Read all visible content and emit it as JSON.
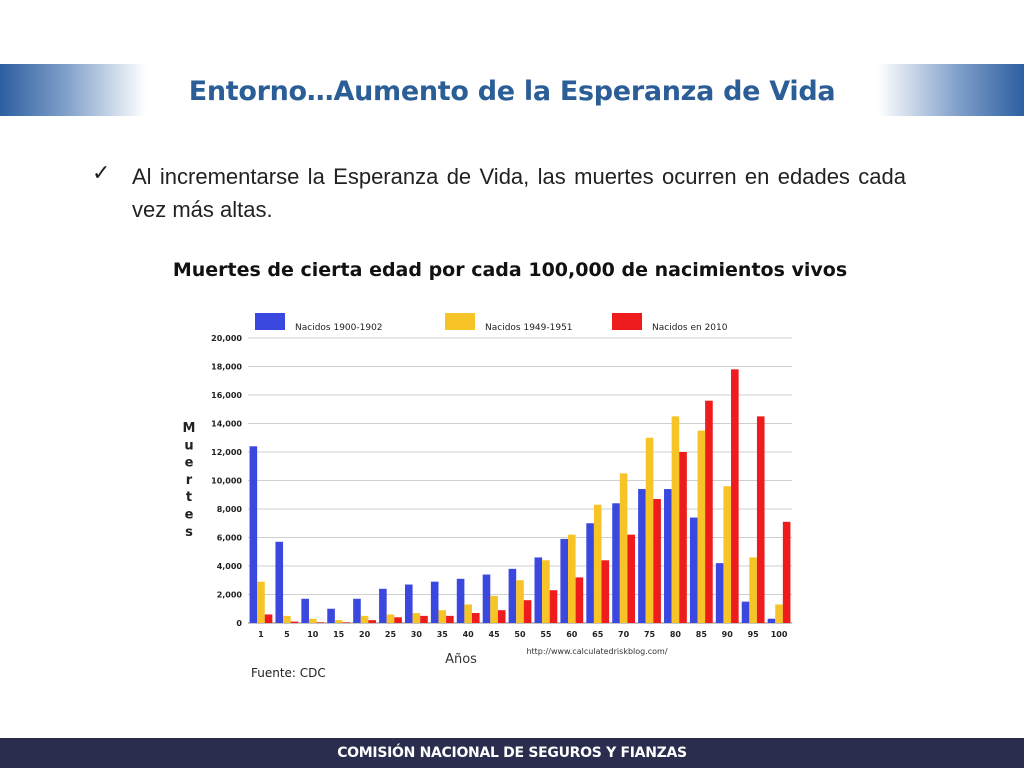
{
  "slide": {
    "title": "Entorno…Aumento de la Esperanza de Vida",
    "bullet_icon": "checkmark-icon",
    "bullet_text": "Al incrementarse la Esperanza de Vida, las muertes ocurren en edades cada vez más altas.",
    "footer": "COMISIÓN NACIONAL DE SEGUROS Y FIANZAS"
  },
  "chart_data": {
    "type": "bar",
    "title": "Muertes de cierta edad por cada 100,000 de nacimientos vivos",
    "xlabel": "Años",
    "ylabel": "Muertes",
    "ylim": [
      0,
      20000
    ],
    "yticks": [
      "0",
      "2,000",
      "4,000",
      "6,000",
      "8,000",
      "10,000",
      "12,000",
      "14,000",
      "16,000",
      "18,000",
      "20,000"
    ],
    "grid": true,
    "legend_position": "top",
    "categories": [
      "1",
      "5",
      "10",
      "15",
      "20",
      "25",
      "30",
      "35",
      "40",
      "45",
      "50",
      "55",
      "60",
      "65",
      "70",
      "75",
      "80",
      "85",
      "90",
      "95",
      "100"
    ],
    "series": [
      {
        "name": "Nacidos 1900-1902",
        "color": "#3b48e0",
        "values": [
          12400,
          5700,
          1700,
          1000,
          1700,
          2400,
          2700,
          2900,
          3100,
          3400,
          3800,
          4600,
          5900,
          7000,
          8400,
          9400,
          9400,
          7400,
          4200,
          1500,
          300
        ]
      },
      {
        "name": "Nacidos 1949-1951",
        "color": "#f7c428",
        "values": [
          2900,
          500,
          300,
          200,
          500,
          600,
          700,
          900,
          1300,
          1900,
          3000,
          4400,
          6200,
          8300,
          10500,
          13000,
          14500,
          13500,
          9600,
          4600,
          1300
        ]
      },
      {
        "name": "Nacidos en 2010",
        "color": "#ee1c1c",
        "values": [
          600,
          100,
          50,
          50,
          200,
          400,
          500,
          500,
          700,
          900,
          1600,
          2300,
          3200,
          4400,
          6200,
          8700,
          12000,
          15600,
          17800,
          14500,
          7100
        ]
      }
    ],
    "source": "Fuente: CDC",
    "watermark": "http://www.calculatedriskblog.com/"
  }
}
